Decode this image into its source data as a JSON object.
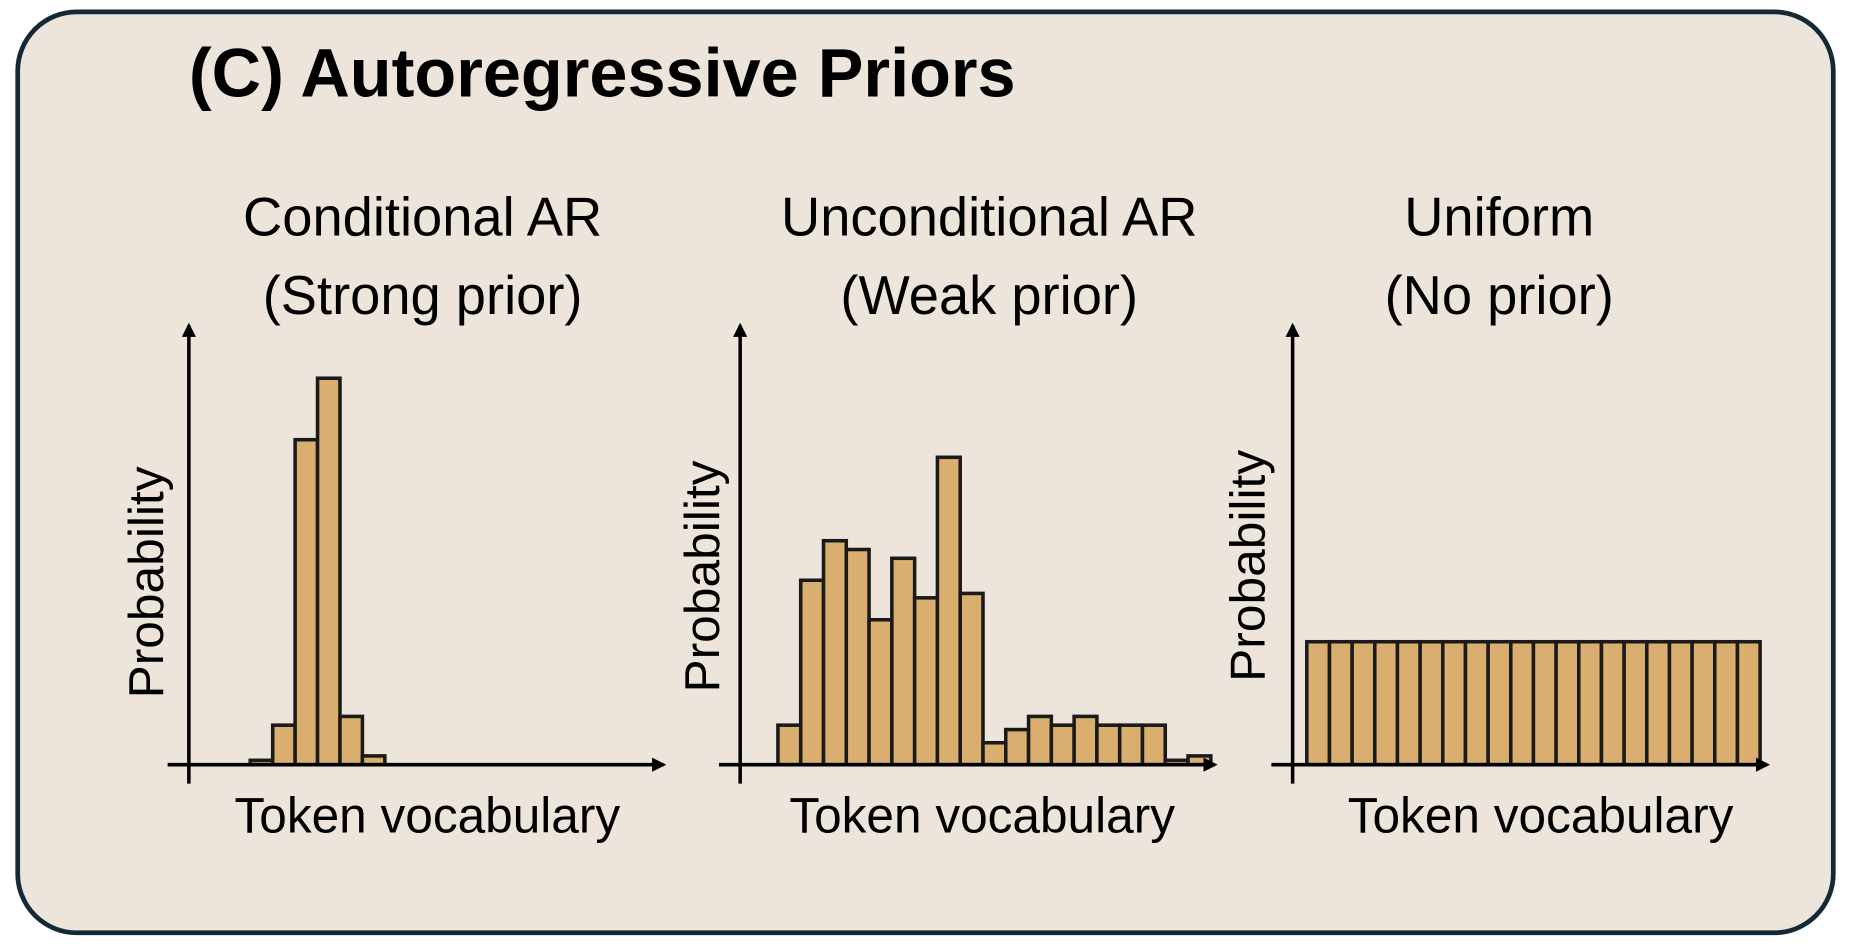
{
  "title": "(C) Autoregressive Priors",
  "chart_data": [
    {
      "type": "bar",
      "title": "Conditional AR",
      "subtitle": "(Strong prior)",
      "x_label": "Token vocabulary",
      "y_label": "Probability",
      "values": [
        0.01,
        0.09,
        0.74,
        0.88,
        0.11,
        0.02
      ],
      "color": "#d9ae6e",
      "ylim": [
        0,
        1
      ]
    },
    {
      "type": "bar",
      "title": "Unconditional AR",
      "subtitle": "(Weak prior)",
      "x_label": "Token vocabulary",
      "y_label": "Probability",
      "values": [
        0.09,
        0.42,
        0.51,
        0.49,
        0.33,
        0.47,
        0.38,
        0.7,
        0.39,
        0.05,
        0.08,
        0.11,
        0.09,
        0.11,
        0.09,
        0.09,
        0.09,
        0.01,
        0.02
      ],
      "color": "#d9ae6e",
      "ylim": [
        0,
        1
      ]
    },
    {
      "type": "bar",
      "title": "Uniform",
      "subtitle": "(No prior)",
      "x_label": "Token vocabulary",
      "y_label": "Probability",
      "values": [
        0.28,
        0.28,
        0.28,
        0.28,
        0.28,
        0.28,
        0.28,
        0.28,
        0.28,
        0.28,
        0.28,
        0.28,
        0.28,
        0.28,
        0.28,
        0.28,
        0.28,
        0.28,
        0.28,
        0.28
      ],
      "color": "#d9ae6e",
      "ylim": [
        0,
        1
      ]
    }
  ]
}
